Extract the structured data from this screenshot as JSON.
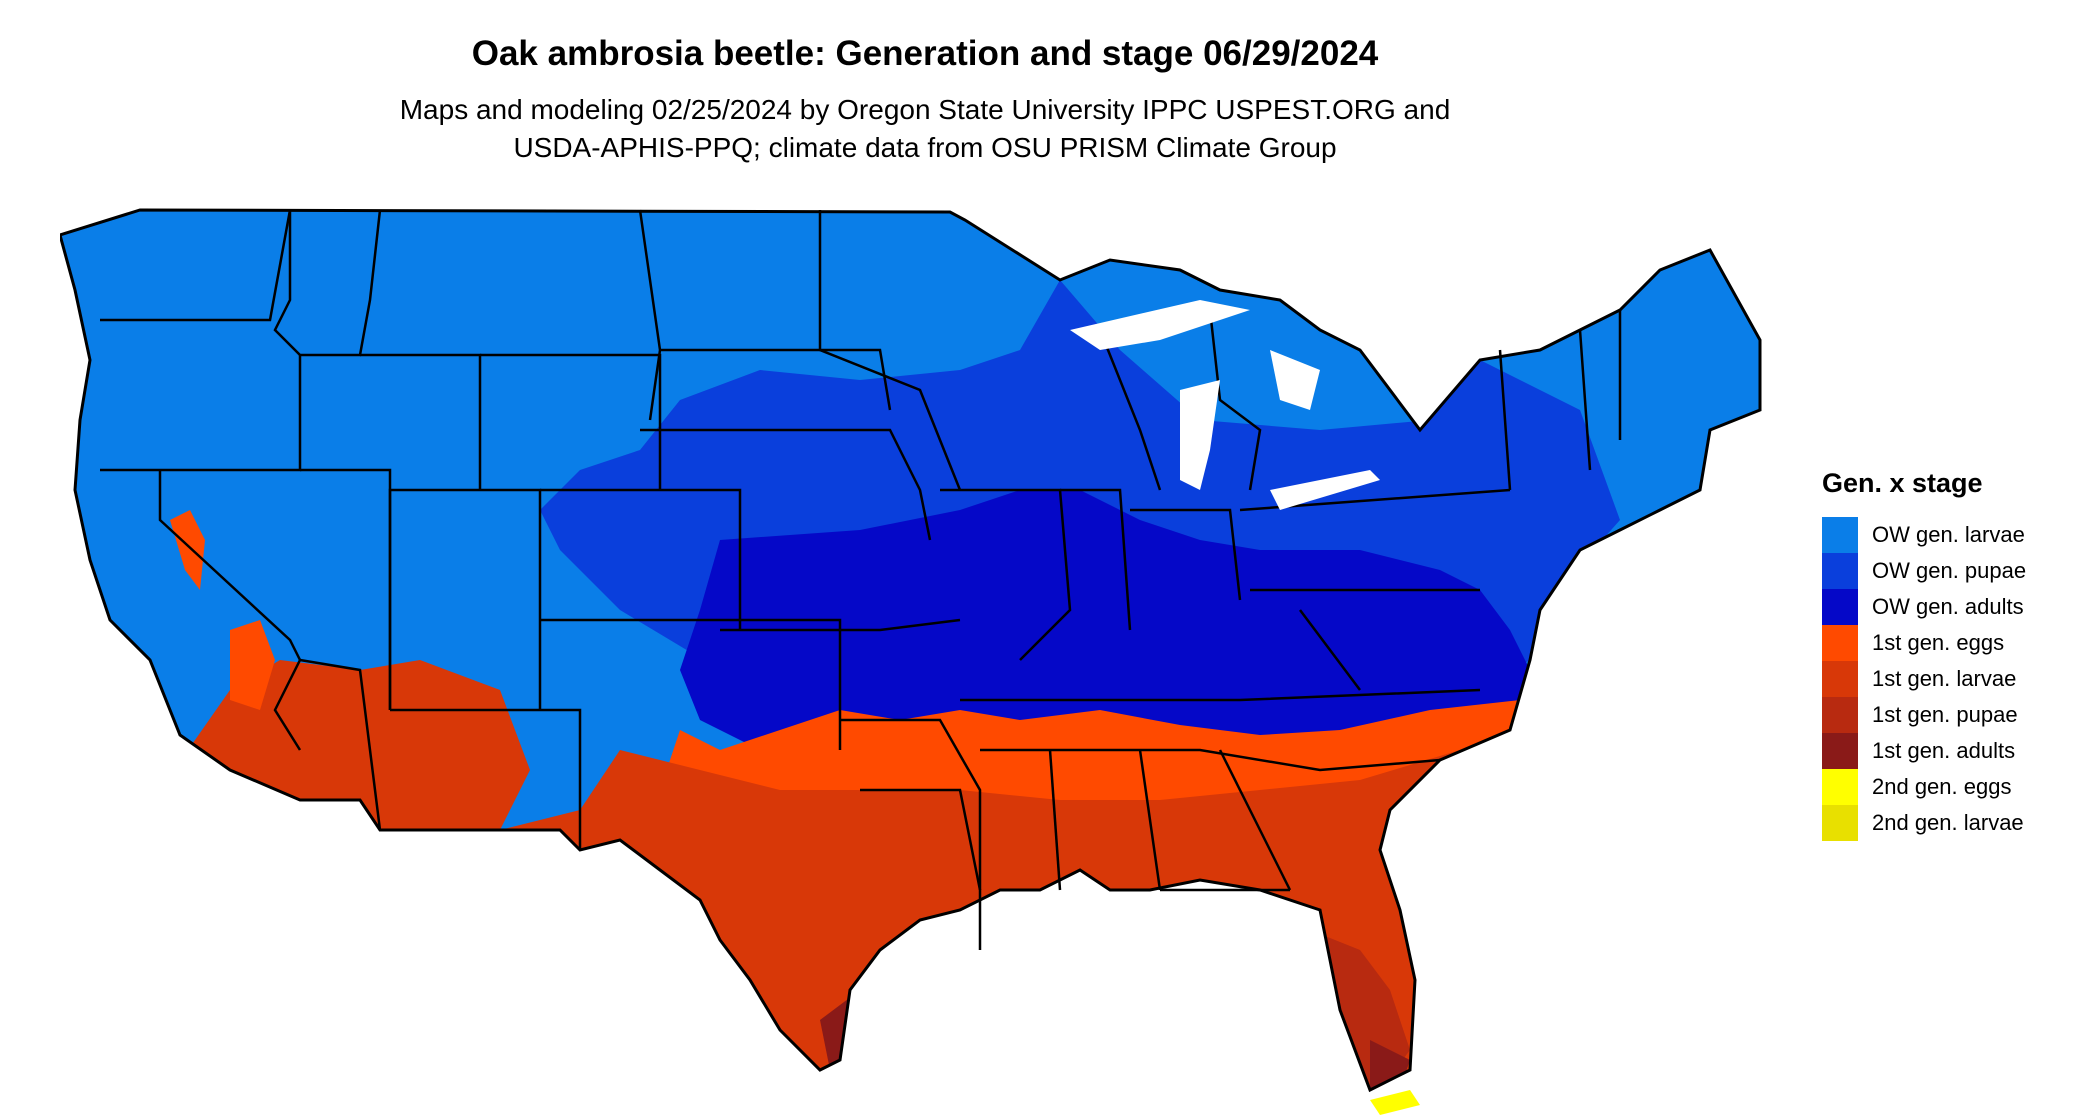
{
  "title": "Oak ambrosia beetle: Generation and stage 06/29/2024",
  "subtitle_line1": "Maps and modeling 02/25/2024 by Oregon State University IPPC USPEST.ORG and",
  "subtitle_line2": "USDA-APHIS-PPQ; climate data from OSU PRISM Climate Group",
  "legend": {
    "title": "Gen. x stage",
    "items": [
      {
        "label": "OW gen. larvae",
        "color": "#0a7ee8"
      },
      {
        "label": "OW gen. pupae",
        "color": "#0a3fdc"
      },
      {
        "label": "OW gen. adults",
        "color": "#0508c8"
      },
      {
        "label": "1st gen. eggs",
        "color": "#ff4a00"
      },
      {
        "label": "1st gen. larvae",
        "color": "#d83808"
      },
      {
        "label": "1st gen. pupae",
        "color": "#b82a10"
      },
      {
        "label": "1st gen. adults",
        "color": "#8a1a18"
      },
      {
        "label": "2nd gen. eggs",
        "color": "#ffff00"
      },
      {
        "label": "2nd gen. larvae",
        "color": "#e8e000"
      }
    ]
  },
  "map": {
    "region": "Contiguous United States",
    "state_border_color": "#000000"
  }
}
